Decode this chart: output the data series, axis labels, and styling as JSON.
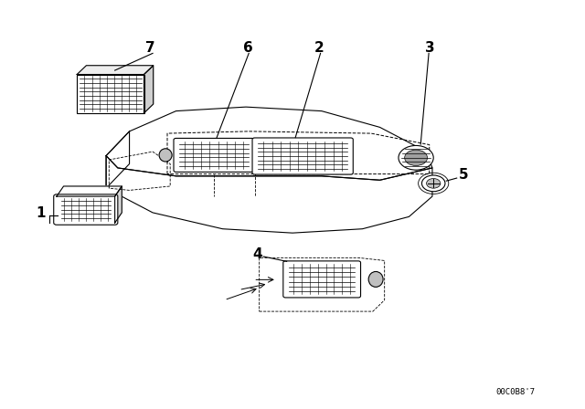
{
  "background_color": "#ffffff",
  "line_color": "#000000",
  "figsize": [
    6.4,
    4.48
  ],
  "dpi": 100,
  "part_number_text": "00C0B8'7",
  "label_fontsize": 11,
  "label_fontweight": "bold"
}
